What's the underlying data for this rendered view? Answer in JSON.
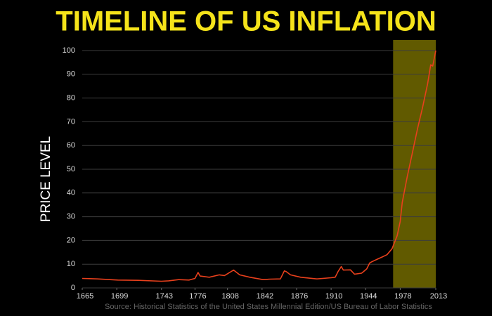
{
  "chart_data": {
    "type": "line",
    "title": "TIMELINE OF US INFLATION",
    "y_label": "PRICE LEVEL",
    "source": "Source: Historical Statistics of the United States Millennial Edition/US Bureau of Labor Statistics",
    "x": [
      1665,
      1680,
      1700,
      1720,
      1743,
      1750,
      1760,
      1770,
      1776,
      1779,
      1781,
      1790,
      1800,
      1805,
      1814,
      1820,
      1830,
      1843,
      1850,
      1860,
      1864,
      1866,
      1870,
      1880,
      1896,
      1910,
      1914,
      1917,
      1920,
      1922,
      1929,
      1933,
      1940,
      1945,
      1948,
      1950,
      1955,
      1960,
      1965,
      1970,
      1975,
      1978,
      1980,
      1985,
      1990,
      1995,
      2000,
      2005,
      2008,
      2010,
      2013
    ],
    "series": [
      {
        "color": "#e8401c",
        "values": [
          4,
          3.8,
          3.3,
          3.2,
          2.8,
          3.0,
          3.5,
          3.3,
          4,
          6.5,
          5,
          4.5,
          5.5,
          5.2,
          7.5,
          5.5,
          4.5,
          3.5,
          3.7,
          3.8,
          7.2,
          6.8,
          5.5,
          4.5,
          3.8,
          4.3,
          4.5,
          7,
          9,
          7.5,
          7.6,
          5.8,
          6.2,
          8,
          10.5,
          11,
          12,
          13,
          14,
          16.5,
          22,
          28,
          36,
          47,
          57,
          67,
          76,
          86,
          94,
          93.5,
          100
        ]
      }
    ],
    "xlim": [
      1665,
      2013
    ],
    "xticks": [
      1665,
      1699,
      1743,
      1776,
      1808,
      1842,
      1876,
      1910,
      1944,
      1978,
      2013
    ],
    "ylim": [
      0,
      100
    ],
    "yticks": [
      0,
      10,
      20,
      30,
      40,
      50,
      60,
      70,
      80,
      90,
      100
    ],
    "grid": true,
    "highlight_x": [
      1971,
      2013
    ],
    "highlight_color": "#6b6400"
  }
}
